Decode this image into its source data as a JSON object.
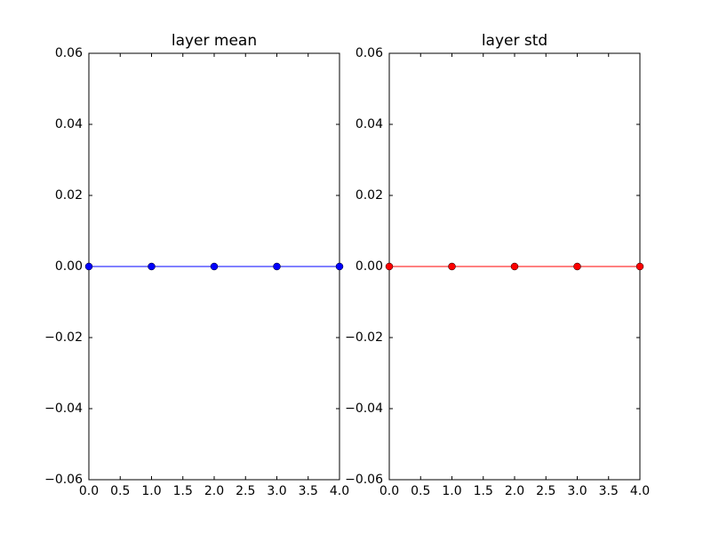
{
  "chart_data": [
    {
      "type": "line",
      "title": "layer mean",
      "x": [
        0,
        1,
        2,
        3,
        4
      ],
      "series": [
        {
          "color": "#0000ff",
          "values": [
            0,
            0,
            0,
            0,
            0
          ]
        }
      ],
      "xlim": [
        0,
        4
      ],
      "ylim": [
        -0.06,
        0.06
      ],
      "xticks": [
        {
          "value": 0,
          "label": "0.0"
        },
        0.5,
        {
          "value": 1,
          "label": "1.0"
        },
        1.5,
        {
          "value": 2,
          "label": "2.0"
        },
        2.5,
        {
          "value": 3,
          "label": "3.0"
        },
        3.5,
        {
          "value": 4,
          "label": "4.0"
        }
      ],
      "yticks": [
        {
          "value": -0.06,
          "label": "−0.06"
        },
        {
          "value": -0.04,
          "label": "−0.04"
        },
        {
          "value": -0.02,
          "label": "−0.02"
        },
        {
          "value": 0,
          "label": "0.00"
        },
        0.02,
        0.04,
        0.06
      ]
    },
    {
      "type": "line",
      "title": "layer std",
      "x": [
        0,
        1,
        2,
        3,
        4
      ],
      "series": [
        {
          "color": "#ff0000",
          "values": [
            0,
            0,
            0,
            0,
            0
          ]
        }
      ],
      "xlim": [
        0,
        4
      ],
      "ylim": [
        -0.06,
        0.06
      ],
      "xticks": [
        {
          "value": 0,
          "label": "0.0"
        },
        0.5,
        {
          "value": 1,
          "label": "1.0"
        },
        1.5,
        {
          "value": 2,
          "label": "2.0"
        },
        2.5,
        {
          "value": 3,
          "label": "3.0"
        },
        3.5,
        {
          "value": 4,
          "label": "4.0"
        }
      ],
      "yticks": [
        {
          "value": -0.06,
          "label": "−0.06"
        },
        {
          "value": -0.04,
          "label": "−0.04"
        },
        {
          "value": -0.02,
          "label": "−0.02"
        },
        {
          "value": 0,
          "label": "0.00"
        },
        0.02,
        0.04,
        0.06
      ]
    }
  ]
}
